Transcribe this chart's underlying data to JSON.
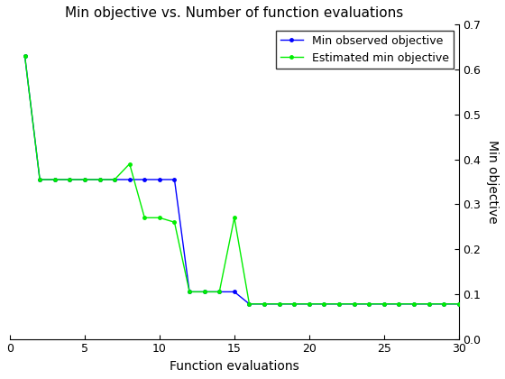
{
  "title": "Min objective vs. Number of function evaluations",
  "xlabel": "Function evaluations",
  "ylabel": "Min objective",
  "xlim": [
    0,
    30
  ],
  "ylim": [
    0,
    0.7
  ],
  "yticks": [
    0,
    0.1,
    0.2,
    0.3,
    0.4,
    0.5,
    0.6,
    0.7
  ],
  "xticks": [
    0,
    5,
    10,
    15,
    20,
    25,
    30
  ],
  "line1_label": "Min observed objective",
  "line1_color": "#0000FF",
  "line1_x": [
    1,
    2,
    3,
    4,
    5,
    6,
    7,
    8,
    9,
    10,
    11,
    12,
    13,
    14,
    15,
    16,
    17,
    18,
    19,
    20,
    21,
    22,
    23,
    24,
    25,
    26,
    27,
    28,
    29,
    30
  ],
  "line1_y": [
    0.63,
    0.355,
    0.355,
    0.355,
    0.355,
    0.355,
    0.355,
    0.355,
    0.355,
    0.355,
    0.355,
    0.105,
    0.105,
    0.105,
    0.105,
    0.078,
    0.078,
    0.078,
    0.078,
    0.078,
    0.078,
    0.078,
    0.078,
    0.078,
    0.078,
    0.078,
    0.078,
    0.078,
    0.078,
    0.078
  ],
  "line2_label": "Estimated min objective",
  "line2_color": "#00EE00",
  "line2_x": [
    1,
    2,
    3,
    4,
    5,
    6,
    7,
    8,
    9,
    10,
    11,
    12,
    13,
    14,
    15,
    16,
    17,
    18,
    19,
    20,
    21,
    22,
    23,
    24,
    25,
    26,
    27,
    28,
    29,
    30
  ],
  "line2_y": [
    0.63,
    0.355,
    0.355,
    0.355,
    0.355,
    0.355,
    0.355,
    0.39,
    0.27,
    0.27,
    0.26,
    0.105,
    0.105,
    0.105,
    0.27,
    0.078,
    0.078,
    0.078,
    0.078,
    0.078,
    0.078,
    0.078,
    0.078,
    0.078,
    0.078,
    0.078,
    0.078,
    0.078,
    0.078,
    0.078
  ],
  "background_color": "#ffffff",
  "title_fontsize": 11,
  "axis_label_fontsize": 10,
  "tick_fontsize": 9,
  "legend_fontsize": 9,
  "marker": ".",
  "markersize": 5,
  "linewidth": 1.0
}
